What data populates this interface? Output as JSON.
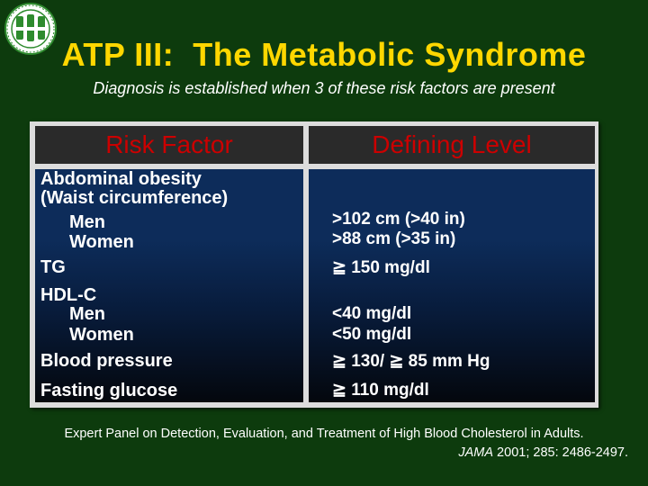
{
  "slide": {
    "title": "ATP III:  The Metabolic Syndrome",
    "subtitle": "Diagnosis is established when 3 of these risk factors are present",
    "logo_icon": "institution-seal-logo"
  },
  "table": {
    "headers": {
      "risk_factor": "Risk Factor",
      "defining_level": "Defining Level"
    },
    "risk_factors": {
      "abdominal_1": "Abdominal obesity",
      "abdominal_2": "(Waist circumference)",
      "men_1": "Men",
      "women_1": "Women",
      "tg": "TG",
      "hdl": "HDL-C",
      "men_2": "Men",
      "women_2": "Women",
      "bp": "Blood pressure",
      "glucose": "Fasting glucose"
    },
    "levels": {
      "waist_men": ">102 cm (>40 in)",
      "waist_women": ">88 cm (>35 in)",
      "tg": "≧ 150 mg/dl",
      "hdl_men": "<40 mg/dl",
      "hdl_women": "<50 mg/dl",
      "bp": "≧ 130/ ≧ 85 mm Hg",
      "glucose": "≧ 110 mg/dl"
    }
  },
  "footer": {
    "citation_line1": "Expert Panel on Detection, Evaluation, and Treatment of High Blood Cholesterol in Adults.",
    "journal": "JAMA",
    "citation_rest": " 2001; 285: 2486-2497."
  },
  "colors": {
    "background": "#0d3b0d",
    "title": "#ffd700",
    "header_text": "#cc0000",
    "body_text": "#ffffff"
  }
}
